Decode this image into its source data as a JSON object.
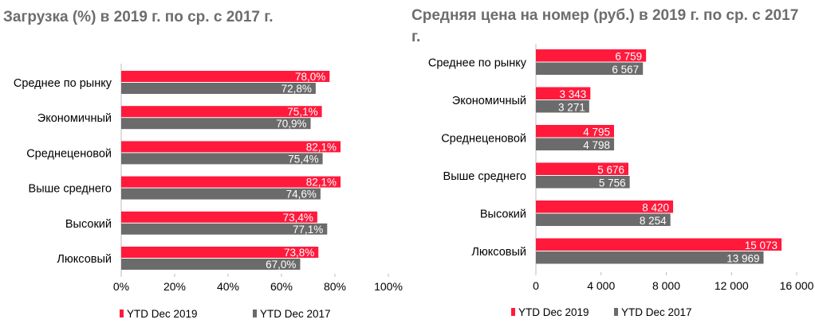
{
  "colors": {
    "y2019": "#ff1a3c",
    "y2017": "#6b6b6b",
    "axis": "#bdbdbd",
    "label": "#000000",
    "title": "#6d6d6d"
  },
  "chart_data": [
    {
      "type": "bar",
      "orientation": "horizontal",
      "title": "Загрузка (%) в 2019 г. по ср. с 2017 г.",
      "categories": [
        "Среднее по рынку",
        "Экономичный",
        "Среднеценовой",
        "Выше среднего",
        "Высокий",
        "Люксовый"
      ],
      "series": [
        {
          "name": "YTD Dec 2019",
          "values": [
            78.0,
            75.1,
            82.1,
            82.1,
            73.4,
            73.8
          ],
          "labels": [
            "78,0%",
            "75,1%",
            "82,1%",
            "82,1%",
            "73,4%",
            "73,8%"
          ]
        },
        {
          "name": "YTD Dec 2017",
          "values": [
            72.8,
            70.9,
            75.4,
            74.6,
            77.1,
            67.0
          ],
          "labels": [
            "72,8%",
            "70,9%",
            "75,4%",
            "74,6%",
            "77,1%",
            "67,0%"
          ]
        }
      ],
      "xlim": [
        0,
        100
      ],
      "ticks": [
        "0%",
        "20%",
        "40%",
        "60%",
        "80%",
        "100%"
      ],
      "legend": "bottom"
    },
    {
      "type": "bar",
      "orientation": "horizontal",
      "title": "Средняя цена на номер (руб.) в 2019 г. по ср. с 2017 г.",
      "categories": [
        "Среднее по рынку",
        "Экономичный",
        "Среднеценовой",
        "Выше среднего",
        "Высокий",
        "Люксовый"
      ],
      "series": [
        {
          "name": "YTD Dec 2019",
          "values": [
            6759,
            3343,
            4795,
            5676,
            8420,
            15073
          ],
          "labels": [
            "6 759",
            "3 343",
            "4 795",
            "5 676",
            "8 420",
            "15 073"
          ]
        },
        {
          "name": "YTD Dec 2017",
          "values": [
            6567,
            3271,
            4798,
            5756,
            8254,
            13969
          ],
          "labels": [
            "6 567",
            "3 271",
            "4 798",
            "5 756",
            "8 254",
            "13 969"
          ]
        }
      ],
      "xlim": [
        0,
        16000
      ],
      "ticks": [
        "0",
        "4 000",
        "8 000",
        "12 000",
        "16 000"
      ],
      "legend": "bottom"
    }
  ]
}
